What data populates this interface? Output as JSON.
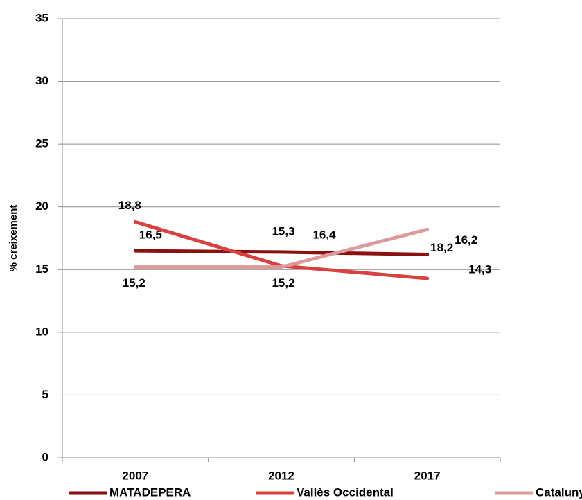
{
  "chart_data": {
    "type": "line",
    "categories": [
      "2007",
      "2012",
      "2017"
    ],
    "ylabel": "% creixement",
    "ylim": [
      0,
      35
    ],
    "yticks": [
      0,
      5,
      10,
      15,
      20,
      25,
      30,
      35
    ],
    "grid": true,
    "legend": "bottom",
    "series": [
      {
        "name": "MATADEPERA",
        "color": "#8b1010",
        "values": [
          16.5,
          16.4,
          16.2
        ],
        "value_labels": [
          "16,5",
          "16,4",
          "16,2"
        ]
      },
      {
        "name": "Vallès Occidental",
        "color": "#d94040",
        "values": [
          18.8,
          15.3,
          14.3
        ],
        "value_labels": [
          "18,8",
          "15,3",
          "14,3"
        ]
      },
      {
        "name": "Catalunya",
        "color": "#dc9a9a",
        "values": [
          15.2,
          15.2,
          18.2
        ],
        "value_labels": [
          "15,2",
          "15,2",
          "18,2"
        ]
      }
    ]
  }
}
